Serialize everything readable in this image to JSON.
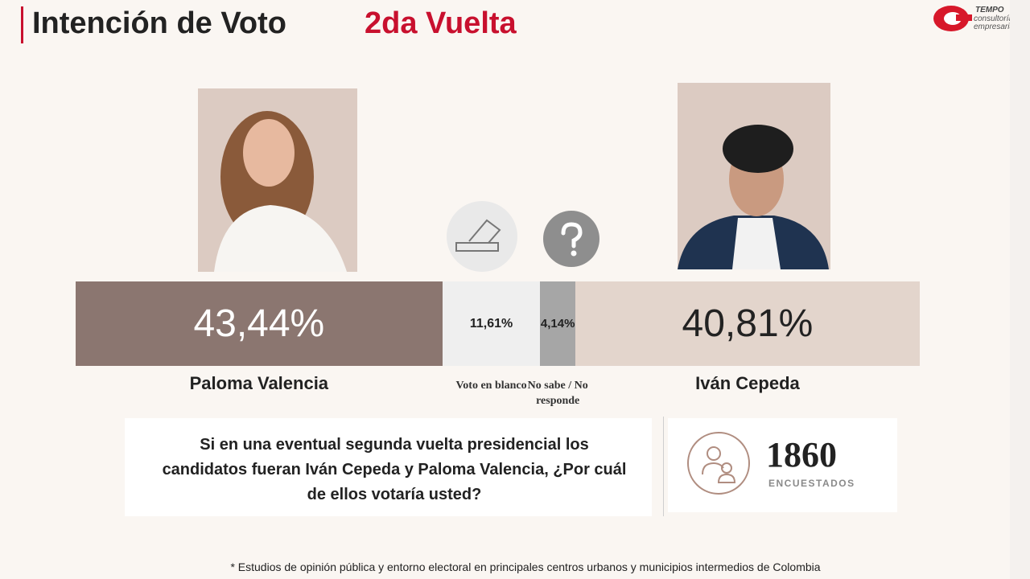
{
  "chart_data": {
    "type": "bar",
    "orientation": "horizontal",
    "stacked": true,
    "title": "Intención de Voto",
    "subtitle": "2da Vuelta",
    "categories": [
      "Paloma Valencia",
      "Voto en blanco",
      "No sabe / No responde",
      "Iván Cepeda"
    ],
    "values": [
      43.44,
      11.61,
      4.14,
      40.81
    ],
    "value_labels": [
      "43,44%",
      "11,61%",
      "4,14%",
      "40,81%"
    ],
    "colors": [
      "#8b7670",
      "#efefef",
      "#a6a6a6",
      "#e3d5cc"
    ],
    "question": "Si en una eventual segunda vuelta presidencial los candidatos fueran Iván Cepeda y Paloma Valencia, ¿Por cuál de ellos votaría usted?",
    "respondents": 1860,
    "respondents_label": "ENCUESTADOS",
    "footnote": "* Estudios de opinión pública y entorno electoral en principales centros urbanos y municipios intermedios de Colombia"
  },
  "logo": {
    "name": "TEMPO",
    "tagline": "consultoría empresarial"
  }
}
